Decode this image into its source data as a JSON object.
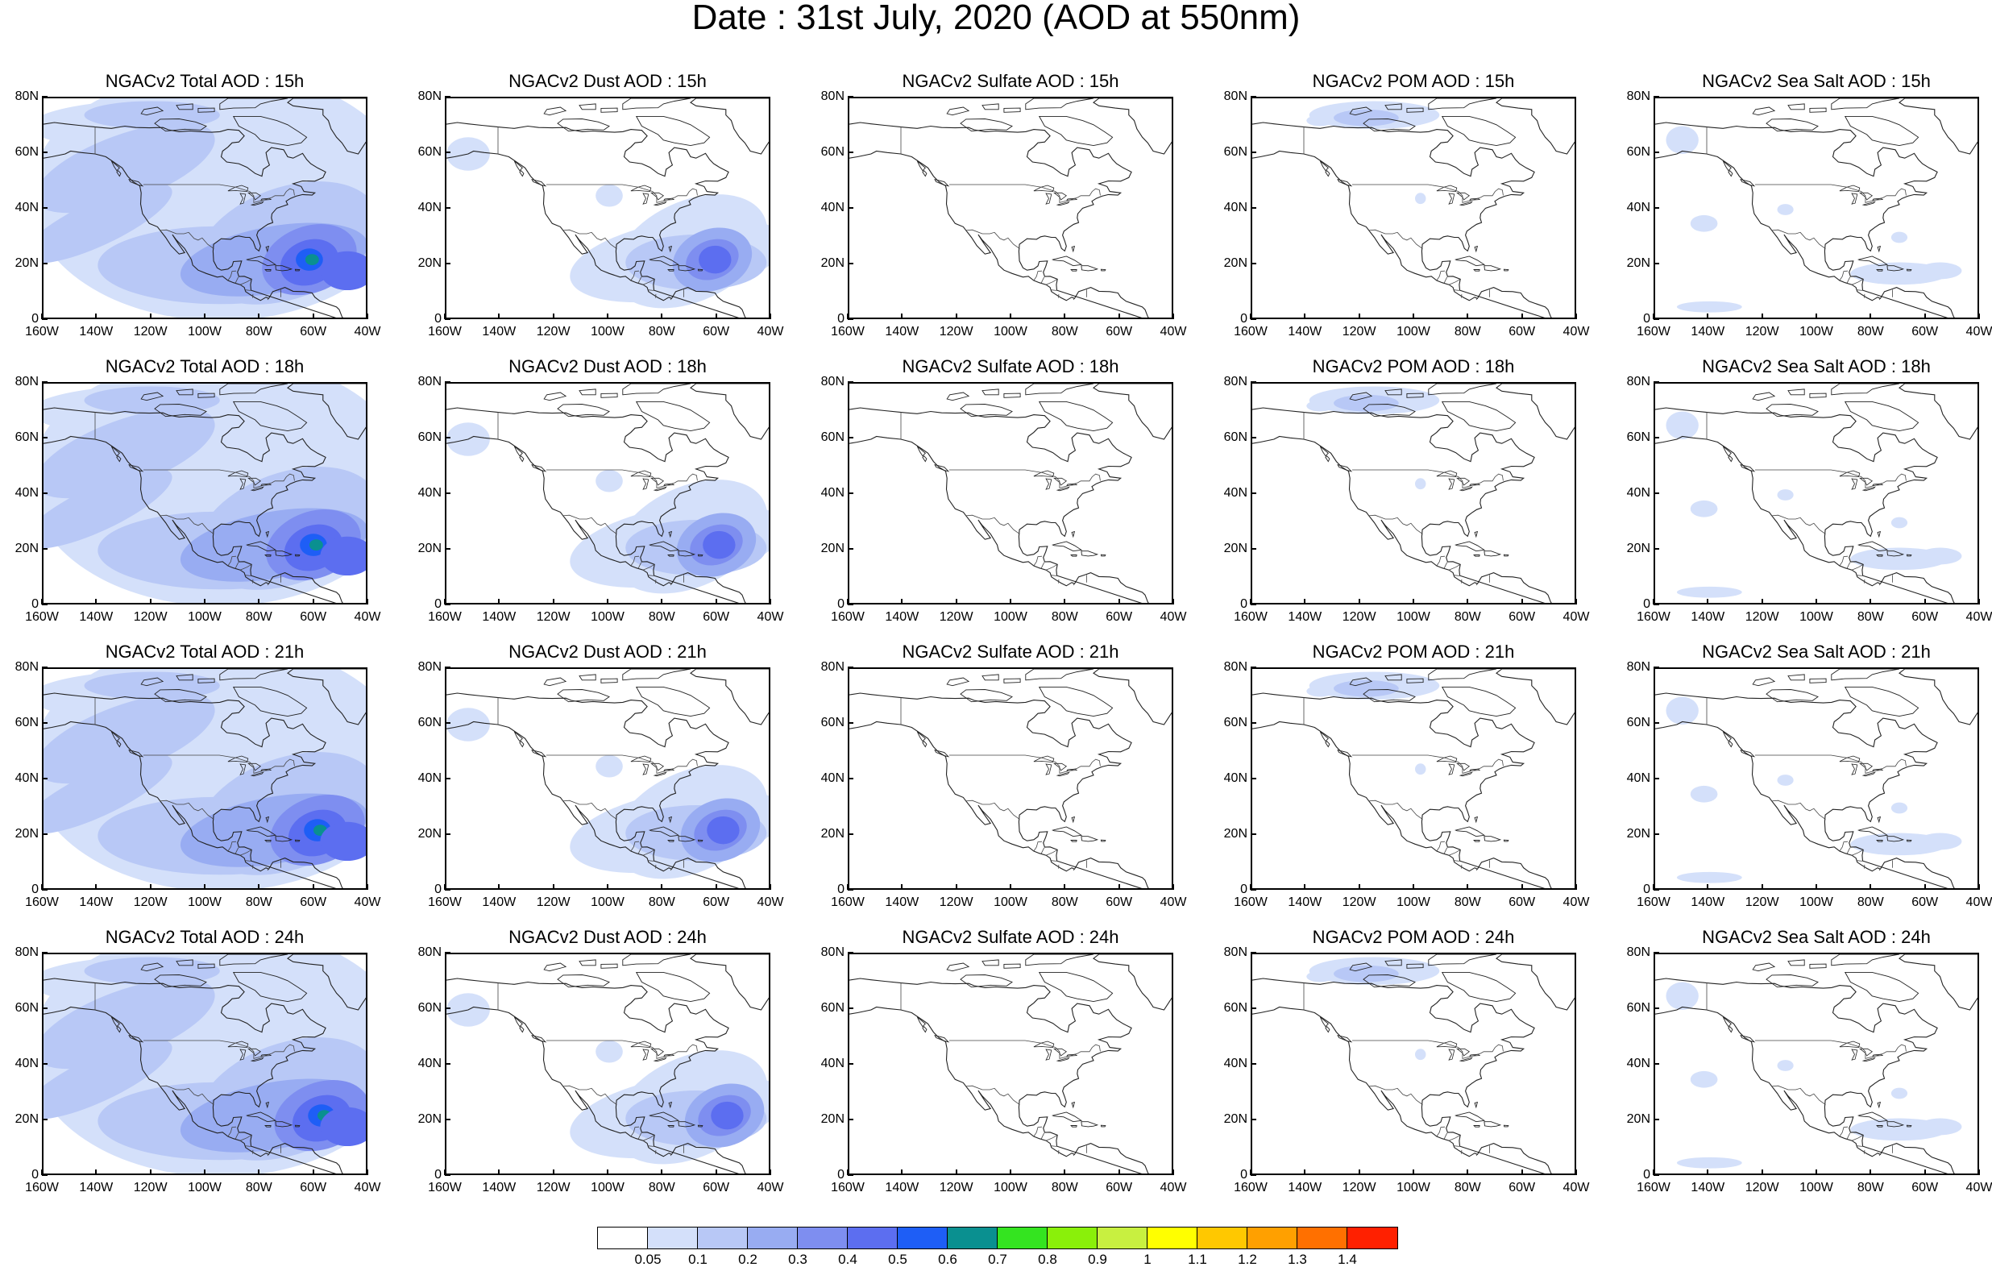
{
  "title": "Date : 31st July, 2020 (AOD at 550nm)",
  "y_tick_labels": [
    "80N",
    "60N",
    "40N",
    "20N",
    "0"
  ],
  "x_tick_labels": [
    "160W",
    "140W",
    "120W",
    "100W",
    "80W",
    "60W",
    "40W"
  ],
  "panel_titles": [
    [
      "NGACv2 Total AOD : 15h",
      "NGACv2 Dust AOD : 15h",
      "NGACv2 Sulfate AOD : 15h",
      "NGACv2 POM AOD : 15h",
      "NGACv2 Sea Salt AOD : 15h"
    ],
    [
      "NGACv2 Total AOD : 18h",
      "NGACv2 Dust AOD : 18h",
      "NGACv2 Sulfate AOD : 18h",
      "NGACv2 POM AOD : 18h",
      "NGACv2 Sea Salt AOD : 18h"
    ],
    [
      "NGACv2 Total AOD : 21h",
      "NGACv2 Dust AOD : 21h",
      "NGACv2 Sulfate AOD : 21h",
      "NGACv2 POM AOD : 21h",
      "NGACv2 Sea Salt AOD : 21h"
    ],
    [
      "NGACv2 Total AOD : 24h",
      "NGACv2 Dust AOD : 24h",
      "NGACv2 Sulfate AOD : 24h",
      "NGACv2 POM AOD : 24h",
      "NGACv2 Sea Salt  AOD : 24h"
    ]
  ],
  "colorbar": {
    "labels": [
      "0.05",
      "0.1",
      "0.2",
      "0.3",
      "0.4",
      "0.5",
      "0.6",
      "0.7",
      "0.8",
      "0.9",
      "1",
      "1.1",
      "1.2",
      "1.3",
      "1.4"
    ],
    "colors": [
      "#ffffff",
      "#d4e0fa",
      "#b8c8f6",
      "#98acf2",
      "#7e8ef0",
      "#5c6ef0",
      "#1e5ef6",
      "#0a9090",
      "#34e420",
      "#8af00a",
      "#c8f040",
      "#ffff00",
      "#ffc800",
      "#ffa000",
      "#ff7000",
      "#ff2000"
    ]
  },
  "chart_data": {
    "type": "heatmap",
    "title": "Date : 31st July, 2020 (AOD at 550nm)",
    "region": {
      "lon_range": [
        -160,
        -40
      ],
      "lat_range": [
        0,
        80
      ]
    },
    "rows_forecast_hours": [
      "15h",
      "18h",
      "21h",
      "24h"
    ],
    "columns_species": [
      "Total AOD",
      "Dust AOD",
      "Sulfate AOD",
      "POM AOD",
      "Sea Salt AOD"
    ],
    "contour_levels": [
      0.05,
      0.1,
      0.2,
      0.3,
      0.4,
      0.5,
      0.6,
      0.7,
      0.8,
      0.9,
      1,
      1.1,
      1.2,
      1.3,
      1.4
    ],
    "features": [
      {
        "species": "Total AOD",
        "description_level_max": 0.7,
        "peak_lon": -60,
        "peak_lat": 22
      },
      {
        "species": "Dust AOD",
        "description_level_max": 0.6,
        "peak_lon": -60,
        "peak_lat": 22
      },
      {
        "species": "Sulfate AOD",
        "description_level_max": 0.05
      },
      {
        "species": "POM AOD",
        "description_level_max": 0.2,
        "peak_lon": -115,
        "peak_lat": 75
      },
      {
        "species": "Sea Salt AOD",
        "description_level_max": 0.1
      }
    ]
  }
}
